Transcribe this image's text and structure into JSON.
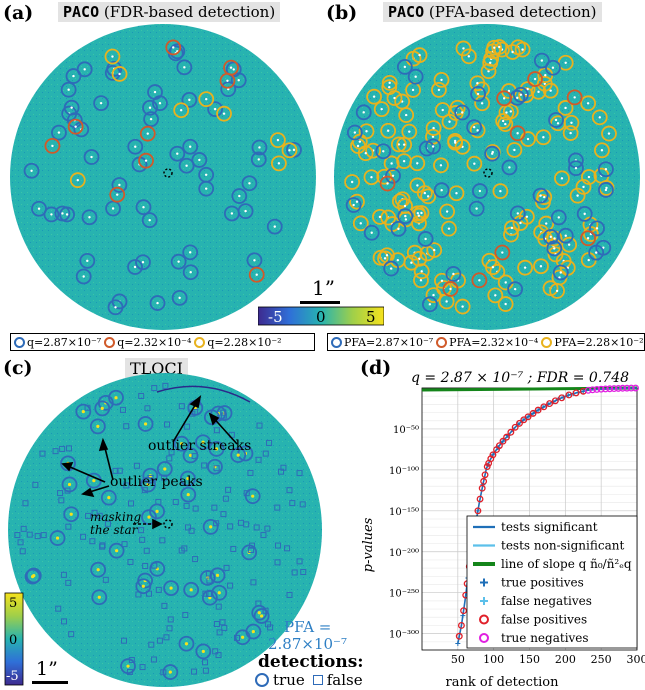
{
  "panels": {
    "a": {
      "label": "(a)",
      "title_mono": "PACO",
      "title_rest": "(FDR-based detection)",
      "legend": [
        {
          "text": "q=2.87×10⁻⁷",
          "color": "#2e6bb8"
        },
        {
          "text": "q=2.32×10⁻⁴",
          "color": "#d05a2a"
        },
        {
          "text": "q=2.28×10⁻²",
          "color": "#e8b21e"
        }
      ]
    },
    "b": {
      "label": "(b)",
      "title_mono": "PACO",
      "title_rest": "(PFA-based detection)",
      "legend": [
        {
          "text": "PFA=2.87×10⁻⁷",
          "color": "#2e6bb8"
        },
        {
          "text": "PFA=2.32×10⁻⁴",
          "color": "#d05a2a"
        },
        {
          "text": "PFA=2.28×10⁻²",
          "color": "#e8b21e"
        }
      ]
    },
    "c": {
      "label": "(c)",
      "title": "TLOCI",
      "annotations": {
        "outlier_streaks": "outlier streaks",
        "outlier_peaks": "outlier peaks",
        "masking_line1": "masking",
        "masking_line2": "the star",
        "pfa_line1": "PFA =",
        "pfa_line2": "2.87×10⁻⁷"
      },
      "detections_title": "detections:",
      "detections_true": "true",
      "detections_false": "false",
      "scalebar": "1”",
      "colorbar_ticks": [
        "5",
        "0",
        "-5"
      ]
    },
    "d": {
      "label": "(d)"
    }
  },
  "shared": {
    "scalebar": "1”",
    "colorbar_ticks": [
      "-5",
      "0",
      "5"
    ]
  },
  "colors": {
    "field": "#27b3b0",
    "true_ring": "#2e6bb8",
    "red_ring": "#d05a2a",
    "yellow_ring": "#e8b21e",
    "significant": "#1f6fb8",
    "nonsignificant": "#5cc0ea",
    "slope": "#14851a",
    "false_pos": "#e0202a",
    "true_neg": "#e020e0"
  },
  "chart_data": {
    "type": "scatter",
    "title": "q = 2.87 × 10⁻⁷ ; FDR = 0.748",
    "xlabel": "rank of detection",
    "ylabel": "p-values",
    "xlim": [
      0,
      300
    ],
    "ylim": [
      -320,
      0
    ],
    "xticks": [
      "50",
      "100",
      "150",
      "200",
      "250",
      "300"
    ],
    "yticks": [
      "10⁻⁵⁰",
      "10⁻¹⁰⁰",
      "10⁻¹⁵⁰",
      "10⁻²⁰⁰",
      "10⁻²⁵⁰",
      "10⁻³⁰⁰"
    ],
    "grid": true,
    "legend_position": "bottom-right",
    "legend": [
      {
        "text": "tests significant",
        "kind": "line",
        "color": "#1f6fb8"
      },
      {
        "text": "tests non-significant",
        "kind": "line",
        "color": "#5cc0ea"
      },
      {
        "text": "line of slope q ñ₀/ñ²ₑq",
        "kind": "thickline",
        "color": "#14851a"
      },
      {
        "text": "true positives",
        "kind": "plus",
        "color": "#1f6fb8"
      },
      {
        "text": "false negatives",
        "kind": "plus",
        "color": "#5cc0ea"
      },
      {
        "text": "false positives",
        "kind": "circle",
        "color": "#e0202a"
      },
      {
        "text": "true negatives",
        "kind": "circle",
        "color": "#e020e0"
      }
    ],
    "curve_log10_p": {
      "x": [
        50,
        55,
        60,
        65,
        70,
        75,
        80,
        85,
        90,
        95,
        100,
        110,
        120,
        130,
        140,
        150,
        160,
        170,
        180,
        190,
        200,
        210,
        220,
        230,
        240,
        250,
        260,
        270,
        280,
        290,
        300
      ],
      "y": [
        -312,
        -290,
        -260,
        -225,
        -190,
        -165,
        -140,
        -118,
        -98,
        -88,
        -80,
        -68,
        -58,
        -48,
        -40,
        -34,
        -28,
        -23,
        -18,
        -14,
        -10,
        -7,
        -5,
        -3,
        -2,
        -1.5,
        -1,
        -0.6,
        -0.3,
        -0.1,
        0
      ]
    },
    "slope_line": {
      "x": [
        0,
        300
      ],
      "y": [
        -2.5,
        0
      ]
    },
    "false_positives_x": [
      52,
      55,
      58,
      61,
      63,
      66,
      69,
      72,
      75,
      78,
      81,
      84,
      86,
      88,
      91,
      93,
      96,
      99,
      104,
      108,
      113,
      118,
      124,
      130,
      136,
      142,
      148,
      155,
      162,
      170,
      178,
      186,
      195,
      205,
      215,
      225
    ],
    "true_negatives_x": [
      232,
      238,
      244,
      250,
      256,
      262,
      268,
      274,
      280,
      286,
      292,
      298
    ]
  }
}
